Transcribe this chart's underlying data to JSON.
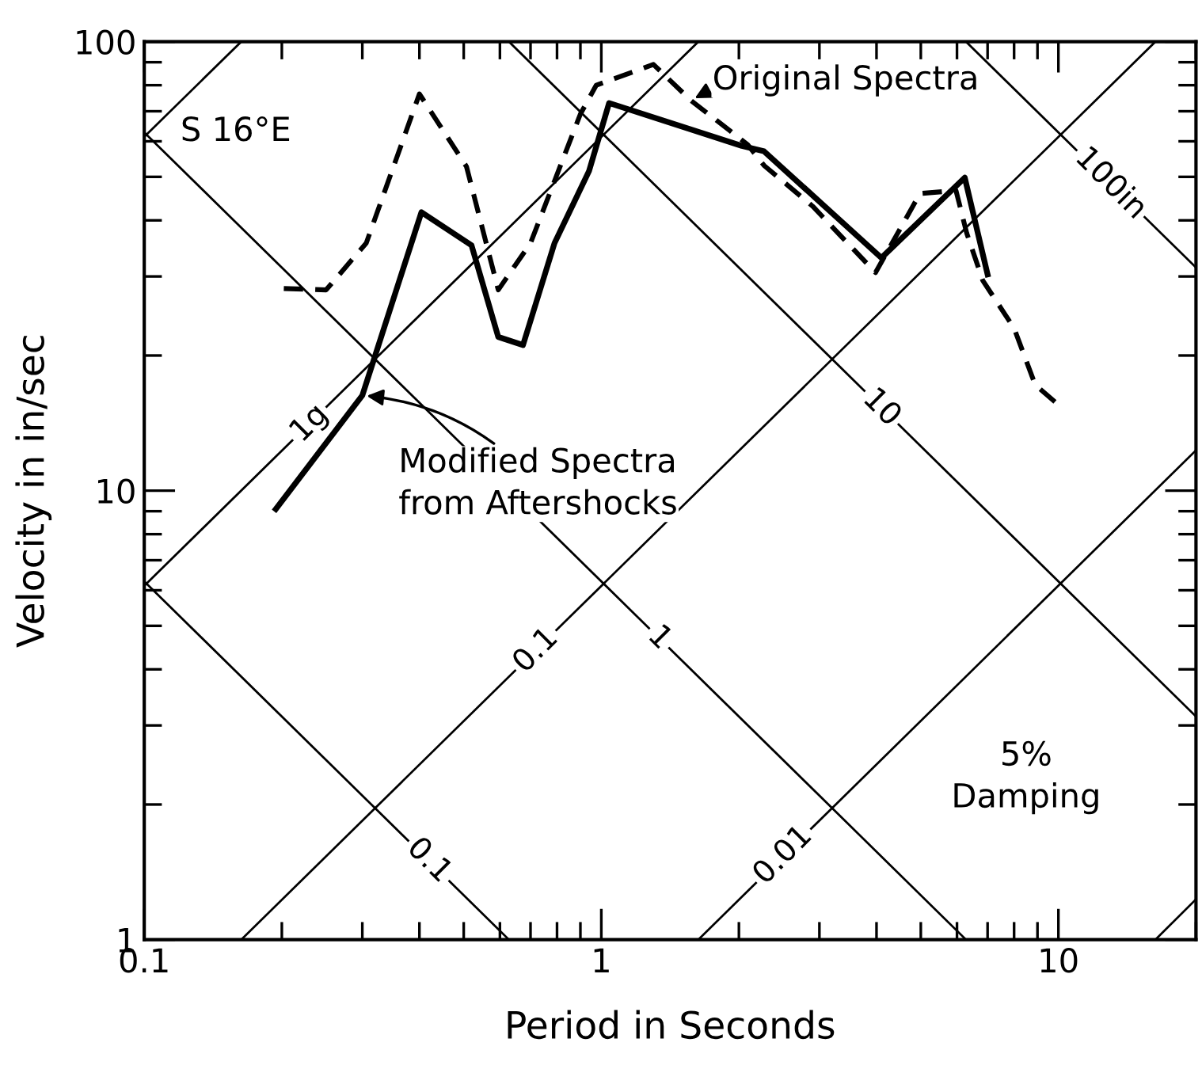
{
  "chart_data": {
    "type": "line",
    "xlabel": "Period in Seconds",
    "ylabel": "Velocity in in/sec",
    "log": "xy",
    "grid": false,
    "xlim": [
      0.1,
      20
    ],
    "ylim": [
      1,
      100
    ],
    "xticks": [
      0.1,
      1,
      10
    ],
    "yticks": [
      1,
      10,
      100
    ],
    "series": [
      {
        "color": "#000000",
        "line_style": "solid",
        "x": [
          0.194,
          0.3,
          0.404,
          0.52,
          0.595,
          0.674,
          0.79,
          0.94,
          1.04,
          2.03,
          2.27,
          4.1,
          6.24,
          7.0
        ],
        "values": [
          9.1,
          16.3,
          41.7,
          35.2,
          22.0,
          21.1,
          35.6,
          51.5,
          73,
          58.6,
          57,
          33,
          49.8,
          30.3
        ]
      },
      {
        "color": "#000000",
        "line_style": "dashed",
        "x": [
          0.202,
          0.25,
          0.306,
          0.4,
          0.507,
          0.595,
          0.7,
          0.9,
          0.975,
          1.3,
          1.57,
          2.09,
          2.27,
          2.9,
          3.98,
          4.98,
          5.97,
          6.3,
          6.83,
          8.0,
          8.9,
          10.1
        ],
        "values": [
          28.2,
          28,
          35.6,
          76.5,
          52.7,
          28,
          35.6,
          69,
          80,
          89,
          74,
          59,
          53,
          43,
          30.6,
          45.9,
          46.6,
          37.5,
          29.4,
          23,
          17.2,
          15.4
        ]
      },
      {
        "color": "#000000",
        "line_style": "solid",
        "x": [
          0.1,
          0.163
        ],
        "values": [
          61.4,
          100
        ]
      },
      {
        "color": "#000000",
        "line_style": "solid",
        "x": [
          0.1,
          1.63
        ],
        "values": [
          6.14,
          100
        ]
      },
      {
        "color": "#000000",
        "line_style": "solid",
        "x": [
          0.163,
          16.3
        ],
        "values": [
          1,
          100
        ]
      },
      {
        "color": "#000000",
        "line_style": "solid",
        "x": [
          1.63,
          20
        ],
        "values": [
          1,
          12.3
        ]
      },
      {
        "color": "#000000",
        "line_style": "solid",
        "x": [
          16.3,
          20
        ],
        "values": [
          1,
          1.23
        ]
      },
      {
        "color": "#000000",
        "line_style": "solid",
        "x": [
          0.1,
          0.628
        ],
        "values": [
          6.28,
          1
        ]
      },
      {
        "color": "#000000",
        "line_style": "solid",
        "x": [
          0.1,
          6.28
        ],
        "values": [
          62.8,
          1
        ]
      },
      {
        "color": "#000000",
        "line_style": "solid",
        "x": [
          0.628,
          20
        ],
        "values": [
          100,
          3.14
        ]
      },
      {
        "color": "#000000",
        "line_style": "solid",
        "x": [
          6.28,
          20
        ],
        "values": [
          100,
          31.4
        ]
      }
    ],
    "annotations": [
      "S 16°E",
      "5%\nDamping",
      {
        "text": "Modified Spectra\nfrom Aftershocks",
        "x": 0.3,
        "y": 16.3
      },
      {
        "text": "Original Spectra",
        "x": 1.57,
        "y": 74
      },
      {
        "text": "1g",
        "x": 0.23,
        "y": 14.1
      },
      {
        "text": "0.1",
        "x": 0.72,
        "y": 4.4
      },
      {
        "text": "0.01",
        "x": 2.5,
        "y": 1.54
      },
      {
        "text": "100in",
        "x": 13,
        "y": 48.3
      },
      {
        "text": "10",
        "x": 4.1,
        "y": 15.3
      },
      {
        "text": "1",
        "x": 1.34,
        "y": 4.7
      },
      {
        "text": "0.1",
        "x": 0.42,
        "y": 1.5
      }
    ]
  }
}
